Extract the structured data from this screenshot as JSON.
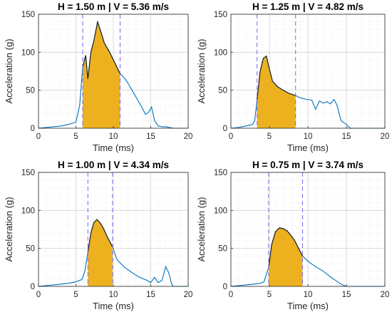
{
  "chart_data": [
    {
      "type": "line",
      "title": "H = 1.50 m | V = 5.36 m/s",
      "xlabel": "Time (ms)",
      "ylabel": "Acceleration (g)",
      "xlim": [
        0,
        20
      ],
      "ylim": [
        0,
        150
      ],
      "xticks": [
        "0",
        "5",
        "10",
        "15",
        "20"
      ],
      "yticks": [
        "0",
        "50",
        "100",
        "150"
      ],
      "grid": true,
      "window": [
        5.9,
        10.9
      ],
      "x": [
        0,
        1,
        2,
        3,
        4,
        5,
        5.5,
        5.9,
        6.3,
        6.6,
        7.0,
        7.4,
        7.9,
        8.3,
        8.8,
        9.5,
        10.0,
        10.5,
        10.9,
        11.3,
        11.8,
        12.5,
        13.2,
        13.8,
        14.3,
        14.8,
        15.1,
        15.5,
        16.0,
        16.5,
        17.0,
        17.5,
        18.0,
        20.0
      ],
      "y": [
        0,
        1,
        2,
        3,
        5,
        8,
        30,
        80,
        96,
        65,
        100,
        115,
        140,
        128,
        112,
        100,
        90,
        80,
        72,
        68,
        62,
        50,
        38,
        28,
        18,
        22,
        28,
        10,
        3,
        2,
        2,
        1,
        0,
        0
      ],
      "fill_color": "#EDB120",
      "line_color": "#0072BD",
      "window_line_color": "#7B68EE"
    },
    {
      "type": "line",
      "title": "H = 1.25 m | V = 4.82 m/s",
      "xlabel": "Time (ms)",
      "ylabel": "Acceleration (g)",
      "xlim": [
        0,
        20
      ],
      "ylim": [
        0,
        150
      ],
      "xticks": [
        "0",
        "5",
        "10",
        "15",
        "20"
      ],
      "yticks": [
        "0",
        "50",
        "100",
        "150"
      ],
      "grid": true,
      "window": [
        3.4,
        8.4
      ],
      "x": [
        0,
        1,
        2,
        2.8,
        3.1,
        3.4,
        3.8,
        4.2,
        4.6,
        5.0,
        5.4,
        6.0,
        6.8,
        7.5,
        8.4,
        9.0,
        9.8,
        10.5,
        11.0,
        11.5,
        12.0,
        12.5,
        12.9,
        13.4,
        13.8,
        14.3,
        15.0,
        15.5,
        20.0
      ],
      "y": [
        0,
        1,
        3,
        5,
        10,
        38,
        75,
        92,
        95,
        78,
        62,
        55,
        50,
        46,
        43,
        40,
        38,
        37,
        25,
        36,
        33,
        35,
        32,
        38,
        30,
        10,
        5,
        0,
        0
      ],
      "fill_color": "#EDB120",
      "line_color": "#0072BD",
      "window_line_color": "#7B68EE"
    },
    {
      "type": "line",
      "title": "H = 1.00 m | V = 4.34 m/s",
      "xlabel": "Time (ms)",
      "ylabel": "Acceleration (g)",
      "xlim": [
        0,
        20
      ],
      "ylim": [
        0,
        150
      ],
      "xticks": [
        "0",
        "5",
        "10",
        "15",
        "20"
      ],
      "yticks": [
        "0",
        "50",
        "100",
        "150"
      ],
      "grid": true,
      "window": [
        6.6,
        9.9
      ],
      "x": [
        0,
        1,
        2,
        3,
        4,
        5,
        5.8,
        6.2,
        6.6,
        7.0,
        7.4,
        7.8,
        8.2,
        8.7,
        9.2,
        9.9,
        10.5,
        11.5,
        12.5,
        13.5,
        14.5,
        15.0,
        15.5,
        16.0,
        16.5,
        17.0,
        17.4,
        17.8,
        18.0,
        20.0
      ],
      "y": [
        0,
        1,
        2,
        3,
        4,
        6,
        9,
        20,
        45,
        70,
        84,
        88,
        84,
        76,
        65,
        52,
        35,
        25,
        18,
        12,
        8,
        5,
        12,
        5,
        8,
        26,
        18,
        3,
        0,
        0
      ],
      "fill_color": "#EDB120",
      "line_color": "#0072BD",
      "window_line_color": "#7B68EE"
    },
    {
      "type": "line",
      "title": "H = 0.75 m | V = 3.74 m/s",
      "xlabel": "Time (ms)",
      "ylabel": "Acceleration (g)",
      "xlim": [
        0,
        20
      ],
      "ylim": [
        0,
        150
      ],
      "xticks": [
        "0",
        "5",
        "10",
        "15",
        "20"
      ],
      "yticks": [
        "0",
        "50",
        "100",
        "150"
      ],
      "grid": true,
      "window": [
        4.9,
        9.3
      ],
      "x": [
        0,
        1,
        2,
        3,
        3.8,
        4.3,
        4.9,
        5.3,
        5.8,
        6.3,
        6.8,
        7.3,
        7.8,
        8.3,
        8.8,
        9.3,
        10.0,
        11.0,
        12.0,
        13.0,
        14.0,
        14.5,
        15.0,
        20.0
      ],
      "y": [
        0,
        1,
        2,
        3,
        4,
        6,
        25,
        55,
        72,
        77,
        76,
        73,
        67,
        60,
        50,
        40,
        33,
        26,
        20,
        12,
        5,
        2,
        0,
        0
      ],
      "fill_color": "#EDB120",
      "line_color": "#0072BD",
      "window_line_color": "#7B68EE"
    }
  ]
}
